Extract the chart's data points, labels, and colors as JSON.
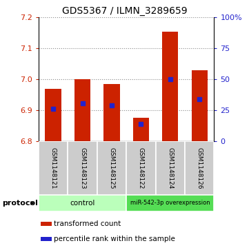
{
  "title": "GDS5367 / ILMN_3289659",
  "samples": [
    "GSM1148121",
    "GSM1148123",
    "GSM1148125",
    "GSM1148122",
    "GSM1148124",
    "GSM1148126"
  ],
  "bar_bottoms": [
    6.8,
    6.8,
    6.8,
    6.8,
    6.8,
    6.8
  ],
  "bar_tops": [
    6.97,
    7.0,
    6.985,
    6.875,
    7.155,
    7.03
  ],
  "blue_markers": [
    6.905,
    6.922,
    6.915,
    6.855,
    7.0,
    6.935
  ],
  "ylim": [
    6.8,
    7.2
  ],
  "yticks_left": [
    6.8,
    6.9,
    7.0,
    7.1,
    7.2
  ],
  "yticks_right": [
    0,
    25,
    50,
    75,
    100
  ],
  "yticks_right_values": [
    6.8,
    6.9,
    7.0,
    7.1,
    7.2
  ],
  "bar_color": "#cc2200",
  "blue_color": "#2222cc",
  "bar_width": 0.55,
  "control_label": "control",
  "mirna_label": "miR-542-3p overexpression",
  "protocol_label": "protocol",
  "legend_red_label": "transformed count",
  "legend_blue_label": "percentile rank within the sample",
  "control_color": "#bbffbb",
  "mirna_color": "#55dd55",
  "label_bg_color": "#cccccc",
  "xlabel_color": "#cc2200",
  "ylabel_right_color": "#2222cc",
  "title_color": "#000000",
  "grid_color": "#888888",
  "grid_linestyle": "dotted"
}
